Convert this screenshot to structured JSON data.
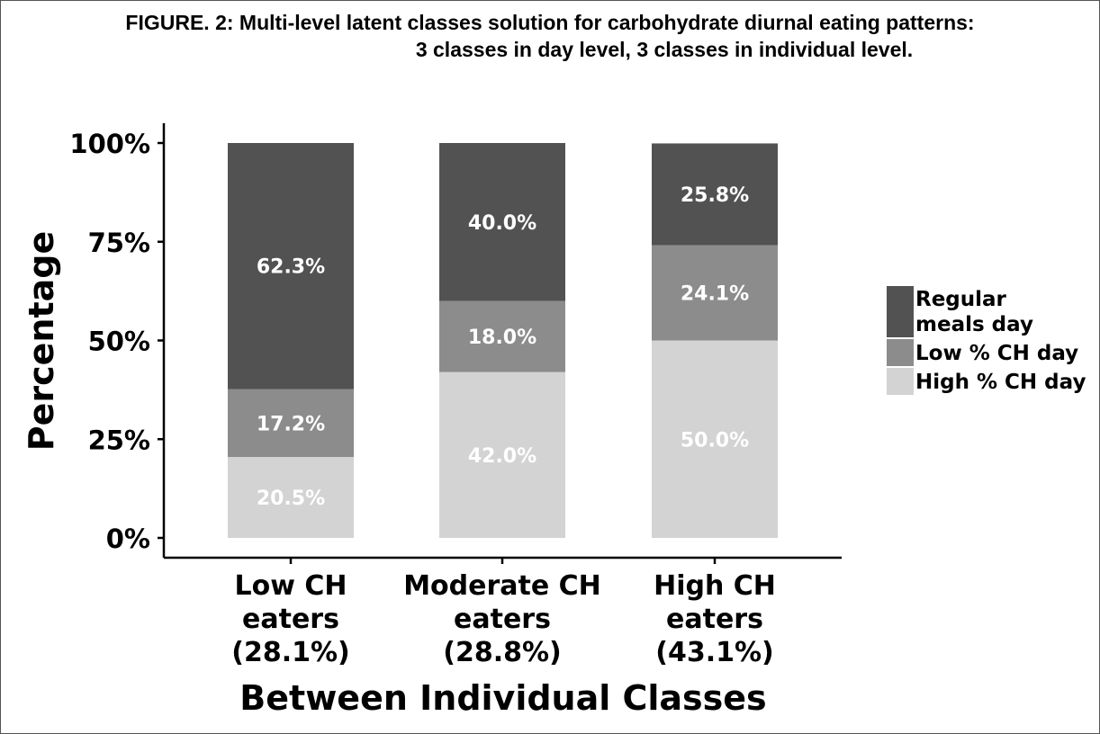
{
  "figure": {
    "title_line1": "FIGURE. 2: Multi-level latent classes solution for carbohydrate diurnal eating patterns:",
    "title_line2": "3 classes in day level, 3 classes in individual level."
  },
  "chart_data": {
    "type": "bar",
    "stacked": true,
    "categories": [
      [
        "Low CH",
        "eaters",
        "(28.1%)"
      ],
      [
        "Moderate CH",
        "eaters",
        "(28.8%)"
      ],
      [
        "High CH",
        "eaters",
        "(43.1%)"
      ]
    ],
    "series": [
      {
        "name": "High % CH day",
        "color": "#d3d3d3",
        "values": [
          20.5,
          42.0,
          50.0
        ],
        "labels": [
          "20.5%",
          "42.0%",
          "50.0%"
        ]
      },
      {
        "name": "Low % CH day",
        "color": "#8c8c8c",
        "values": [
          17.2,
          18.0,
          24.1
        ],
        "labels": [
          "17.2%",
          "18.0%",
          "24.1%"
        ]
      },
      {
        "name": "Regular meals day",
        "color": "#525252",
        "values": [
          62.3,
          40.0,
          25.8
        ],
        "labels": [
          "62.3%",
          "40.0%",
          "25.8%"
        ]
      }
    ],
    "ylim": [
      0,
      100
    ],
    "yticks": [
      0,
      25,
      50,
      75,
      100
    ],
    "ytick_labels": [
      "0%",
      "25%",
      "50%",
      "75%",
      "100%"
    ],
    "ylabel": "Percentage",
    "xlabel": "Between Individual Classes",
    "legend": {
      "placement": "right",
      "entries": [
        {
          "lines": [
            "Regular",
            "meals day"
          ],
          "color": "#525252"
        },
        {
          "lines": [
            "Low % CH day"
          ],
          "color": "#8c8c8c"
        },
        {
          "lines": [
            "High % CH day"
          ],
          "color": "#d3d3d3"
        }
      ]
    },
    "grid": false
  }
}
